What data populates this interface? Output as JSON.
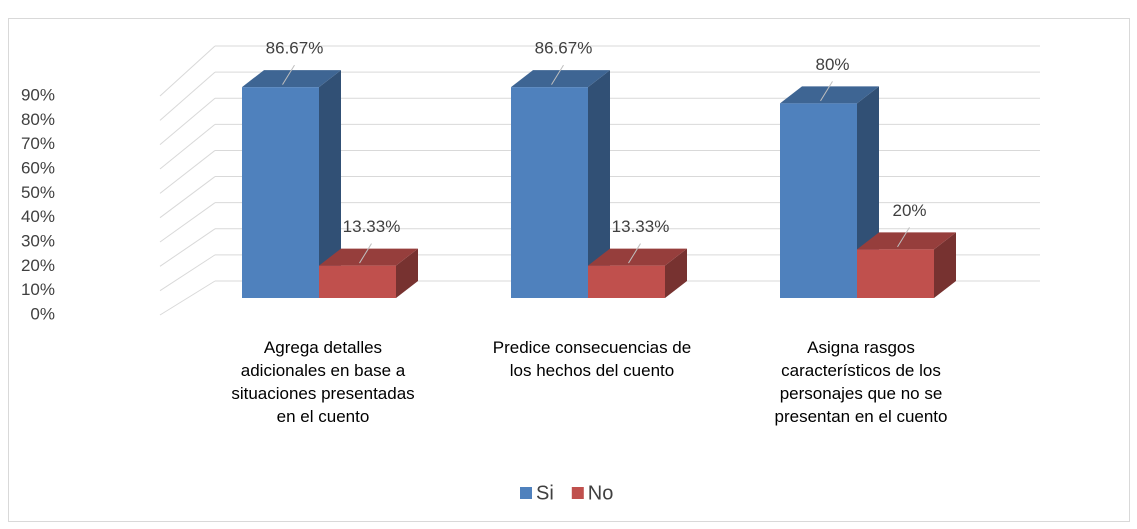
{
  "chart_data": {
    "type": "bar3d",
    "categories": [
      "Agrega detalles adicionales en base a situaciones presentadas en el cuento",
      "Predice consecuencias de los hechos del cuento",
      "Asigna rasgos característicos de los personajes que no se presentan en el cuento"
    ],
    "series": [
      {
        "name": "Si",
        "color": "#4f81bd",
        "values": [
          86.67,
          86.67,
          80
        ],
        "value_labels": [
          "86.67%",
          "86.67%",
          "80%"
        ]
      },
      {
        "name": "No",
        "color": "#c0504d",
        "values": [
          13.33,
          13.33,
          20
        ],
        "value_labels": [
          "13.33%",
          "13.33%",
          "20%"
        ]
      }
    ],
    "ylim": [
      0,
      90
    ],
    "yticks": [
      {
        "value": 0,
        "label": "0%"
      },
      {
        "value": 10,
        "label": "10%"
      },
      {
        "value": 20,
        "label": "20%"
      },
      {
        "value": 30,
        "label": "30%"
      },
      {
        "value": 40,
        "label": "40%"
      },
      {
        "value": 50,
        "label": "50%"
      },
      {
        "value": 60,
        "label": "60%"
      },
      {
        "value": 70,
        "label": "70%"
      },
      {
        "value": 80,
        "label": "80%"
      },
      {
        "value": 90,
        "label": "90%"
      }
    ],
    "grid": true,
    "legend": "bottom"
  }
}
